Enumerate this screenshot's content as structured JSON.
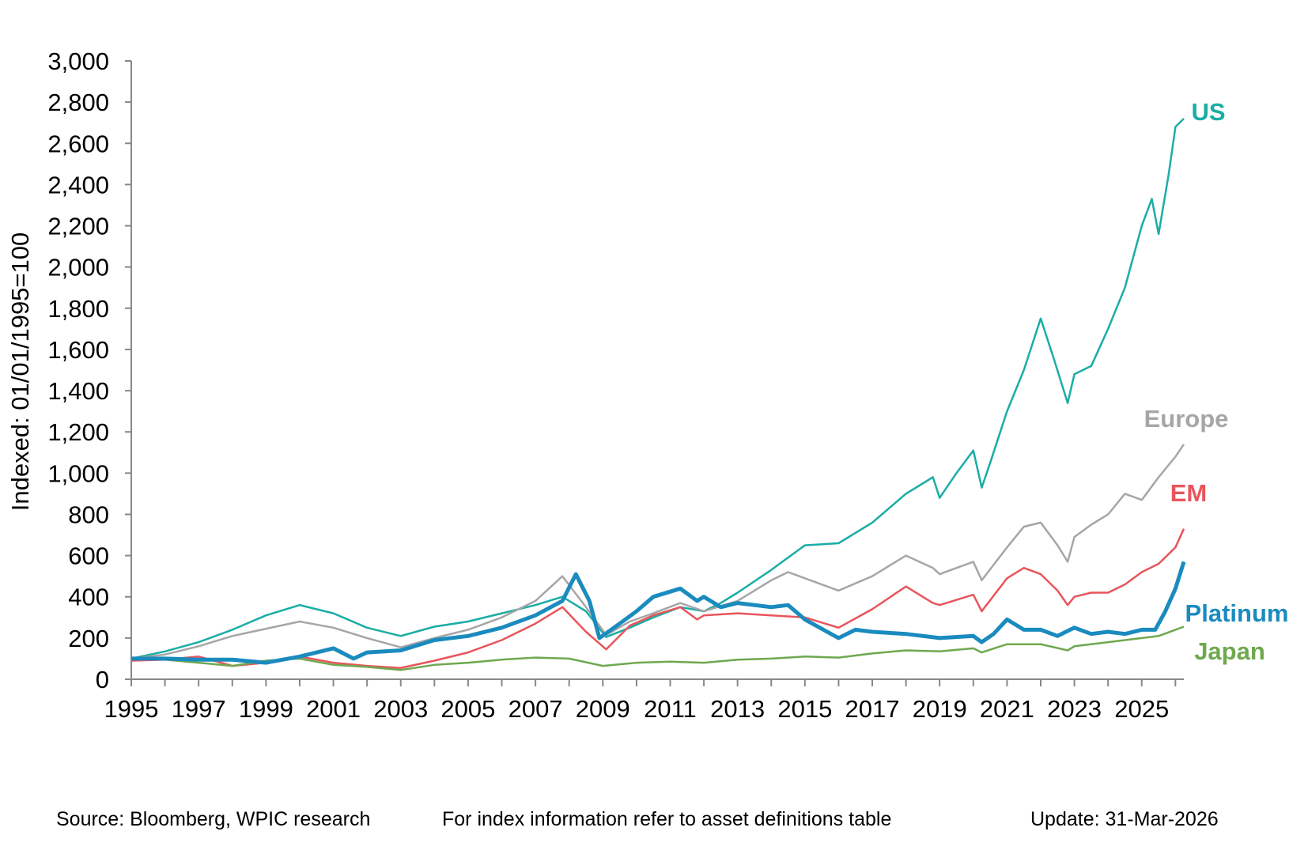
{
  "chart_data": {
    "type": "line",
    "ylabel": "Indexed: 01/01/1995=100",
    "xlabel": "",
    "ylim": [
      0,
      3000
    ],
    "xlim": [
      1995,
      2026.25
    ],
    "yticks": [
      0,
      200,
      400,
      600,
      800,
      1000,
      1200,
      1400,
      1600,
      1800,
      2000,
      2200,
      2400,
      2600,
      2800,
      3000
    ],
    "ytick_labels": [
      "0",
      "200",
      "400",
      "600",
      "800",
      "1,000",
      "1,200",
      "1,400",
      "1,600",
      "1,800",
      "2,000",
      "2,200",
      "2,400",
      "2,600",
      "2,800",
      "3,000"
    ],
    "xticks": [
      1995,
      1997,
      1999,
      2001,
      2003,
      2005,
      2007,
      2009,
      2011,
      2013,
      2015,
      2017,
      2019,
      2021,
      2023,
      2025
    ],
    "xtick_labels": [
      "1995",
      "1997",
      "1999",
      "2001",
      "2003",
      "2005",
      "2007",
      "2009",
      "2011",
      "2013",
      "2015",
      "2017",
      "2019",
      "2021",
      "2023",
      "2025"
    ],
    "grid": false,
    "series": [
      {
        "name": "US",
        "color": "#1AADA5",
        "points": [
          [
            1995,
            100
          ],
          [
            1996,
            135
          ],
          [
            1997,
            180
          ],
          [
            1998,
            240
          ],
          [
            1999,
            310
          ],
          [
            2000,
            360
          ],
          [
            2001,
            320
          ],
          [
            2002,
            250
          ],
          [
            2003,
            210
          ],
          [
            2004,
            255
          ],
          [
            2005,
            280
          ],
          [
            2006,
            320
          ],
          [
            2007,
            360
          ],
          [
            2007.8,
            400
          ],
          [
            2008.5,
            330
          ],
          [
            2009.1,
            205
          ],
          [
            2009.8,
            250
          ],
          [
            2010.5,
            300
          ],
          [
            2011.3,
            350
          ],
          [
            2012,
            330
          ],
          [
            2012.5,
            370
          ],
          [
            2013,
            420
          ],
          [
            2014,
            530
          ],
          [
            2015,
            650
          ],
          [
            2016,
            660
          ],
          [
            2017,
            760
          ],
          [
            2018,
            900
          ],
          [
            2018.8,
            980
          ],
          [
            2019,
            880
          ],
          [
            2019.5,
            1000
          ],
          [
            2020,
            1110
          ],
          [
            2020.25,
            930
          ],
          [
            2020.5,
            1050
          ],
          [
            2021,
            1300
          ],
          [
            2021.5,
            1500
          ],
          [
            2022,
            1750
          ],
          [
            2022.4,
            1550
          ],
          [
            2022.8,
            1340
          ],
          [
            2023,
            1480
          ],
          [
            2023.5,
            1520
          ],
          [
            2024,
            1700
          ],
          [
            2024.5,
            1900
          ],
          [
            2025,
            2200
          ],
          [
            2025.3,
            2330
          ],
          [
            2025.5,
            2160
          ],
          [
            2025.8,
            2450
          ],
          [
            2026,
            2680
          ],
          [
            2026.25,
            2720
          ]
        ]
      },
      {
        "name": "Europe",
        "color": "#A6A6A6",
        "points": [
          [
            1995,
            100
          ],
          [
            1996,
            120
          ],
          [
            1997,
            160
          ],
          [
            1998,
            210
          ],
          [
            1999,
            245
          ],
          [
            2000,
            280
          ],
          [
            2001,
            250
          ],
          [
            2002,
            200
          ],
          [
            2003,
            155
          ],
          [
            2004,
            200
          ],
          [
            2005,
            240
          ],
          [
            2006,
            300
          ],
          [
            2007,
            380
          ],
          [
            2007.8,
            500
          ],
          [
            2008.5,
            350
          ],
          [
            2009.1,
            215
          ],
          [
            2009.8,
            280
          ],
          [
            2010.5,
            320
          ],
          [
            2011.3,
            370
          ],
          [
            2012,
            330
          ],
          [
            2013,
            380
          ],
          [
            2014,
            480
          ],
          [
            2014.5,
            520
          ],
          [
            2015,
            490
          ],
          [
            2016,
            430
          ],
          [
            2017,
            500
          ],
          [
            2018,
            600
          ],
          [
            2018.8,
            540
          ],
          [
            2019,
            510
          ],
          [
            2020,
            570
          ],
          [
            2020.25,
            480
          ],
          [
            2021,
            640
          ],
          [
            2021.5,
            740
          ],
          [
            2022,
            760
          ],
          [
            2022.5,
            650
          ],
          [
            2022.8,
            570
          ],
          [
            2023,
            690
          ],
          [
            2023.5,
            750
          ],
          [
            2024,
            800
          ],
          [
            2024.5,
            900
          ],
          [
            2025,
            870
          ],
          [
            2025.5,
            980
          ],
          [
            2026,
            1080
          ],
          [
            2026.25,
            1140
          ]
        ]
      },
      {
        "name": "EM",
        "color": "#E8555C",
        "points": [
          [
            1995,
            90
          ],
          [
            1996,
            95
          ],
          [
            1997,
            110
          ],
          [
            1998,
            65
          ],
          [
            1999,
            80
          ],
          [
            2000,
            110
          ],
          [
            2001,
            80
          ],
          [
            2002,
            65
          ],
          [
            2003,
            55
          ],
          [
            2004,
            90
          ],
          [
            2005,
            130
          ],
          [
            2006,
            190
          ],
          [
            2007,
            270
          ],
          [
            2007.8,
            350
          ],
          [
            2008.5,
            230
          ],
          [
            2009.1,
            145
          ],
          [
            2009.8,
            260
          ],
          [
            2010.5,
            310
          ],
          [
            2011.3,
            350
          ],
          [
            2011.8,
            290
          ],
          [
            2012,
            310
          ],
          [
            2013,
            320
          ],
          [
            2014,
            310
          ],
          [
            2015,
            300
          ],
          [
            2016,
            250
          ],
          [
            2017,
            340
          ],
          [
            2018,
            450
          ],
          [
            2018.8,
            370
          ],
          [
            2019,
            360
          ],
          [
            2020,
            410
          ],
          [
            2020.25,
            330
          ],
          [
            2021,
            490
          ],
          [
            2021.5,
            540
          ],
          [
            2022,
            510
          ],
          [
            2022.5,
            430
          ],
          [
            2022.8,
            360
          ],
          [
            2023,
            400
          ],
          [
            2023.5,
            420
          ],
          [
            2024,
            420
          ],
          [
            2024.5,
            460
          ],
          [
            2025,
            520
          ],
          [
            2025.5,
            560
          ],
          [
            2026,
            640
          ],
          [
            2026.25,
            730
          ]
        ]
      },
      {
        "name": "Japan",
        "color": "#6FA84F",
        "points": [
          [
            1995,
            100
          ],
          [
            1996,
            95
          ],
          [
            1997,
            80
          ],
          [
            1998,
            65
          ],
          [
            1999,
            90
          ],
          [
            2000,
            100
          ],
          [
            2001,
            70
          ],
          [
            2002,
            60
          ],
          [
            2003,
            45
          ],
          [
            2004,
            70
          ],
          [
            2005,
            80
          ],
          [
            2006,
            95
          ],
          [
            2007,
            105
          ],
          [
            2008,
            100
          ],
          [
            2009,
            65
          ],
          [
            2010,
            80
          ],
          [
            2011,
            85
          ],
          [
            2012,
            80
          ],
          [
            2013,
            95
          ],
          [
            2014,
            100
          ],
          [
            2015,
            110
          ],
          [
            2016,
            105
          ],
          [
            2017,
            125
          ],
          [
            2018,
            140
          ],
          [
            2019,
            135
          ],
          [
            2020,
            150
          ],
          [
            2020.25,
            130
          ],
          [
            2021,
            170
          ],
          [
            2022,
            170
          ],
          [
            2022.8,
            140
          ],
          [
            2023,
            160
          ],
          [
            2024,
            180
          ],
          [
            2025,
            200
          ],
          [
            2025.5,
            210
          ],
          [
            2026,
            240
          ],
          [
            2026.25,
            255
          ]
        ]
      },
      {
        "name": "Platinum",
        "color": "#1A8BBE",
        "points": [
          [
            1995,
            100
          ],
          [
            1996,
            100
          ],
          [
            1997,
            95
          ],
          [
            1998,
            95
          ],
          [
            1999,
            80
          ],
          [
            2000,
            110
          ],
          [
            2001,
            150
          ],
          [
            2001.6,
            100
          ],
          [
            2002,
            130
          ],
          [
            2003,
            140
          ],
          [
            2004,
            190
          ],
          [
            2005,
            210
          ],
          [
            2006,
            250
          ],
          [
            2007,
            310
          ],
          [
            2007.8,
            380
          ],
          [
            2008.2,
            510
          ],
          [
            2008.6,
            380
          ],
          [
            2008.9,
            200
          ],
          [
            2009.5,
            270
          ],
          [
            2010,
            330
          ],
          [
            2010.5,
            400
          ],
          [
            2011.3,
            440
          ],
          [
            2011.8,
            380
          ],
          [
            2012,
            400
          ],
          [
            2012.5,
            350
          ],
          [
            2013,
            370
          ],
          [
            2014,
            350
          ],
          [
            2014.5,
            360
          ],
          [
            2015,
            290
          ],
          [
            2016,
            200
          ],
          [
            2016.5,
            240
          ],
          [
            2017,
            230
          ],
          [
            2018,
            220
          ],
          [
            2019,
            200
          ],
          [
            2020,
            210
          ],
          [
            2020.25,
            180
          ],
          [
            2020.6,
            220
          ],
          [
            2021,
            290
          ],
          [
            2021.5,
            240
          ],
          [
            2022,
            240
          ],
          [
            2022.5,
            210
          ],
          [
            2023,
            250
          ],
          [
            2023.5,
            220
          ],
          [
            2024,
            230
          ],
          [
            2024.5,
            220
          ],
          [
            2025,
            240
          ],
          [
            2025.4,
            240
          ],
          [
            2025.7,
            330
          ],
          [
            2026,
            440
          ],
          [
            2026.25,
            570
          ]
        ]
      }
    ]
  },
  "series_labels": {
    "us": "US",
    "europe": "Europe",
    "em": "EM",
    "platinum": "Platinum",
    "japan": "Japan"
  },
  "footer": {
    "source": "Source: Bloomberg, WPIC research",
    "note": "For index information refer to asset definitions table",
    "update": "Update: 31-Mar-2026"
  }
}
